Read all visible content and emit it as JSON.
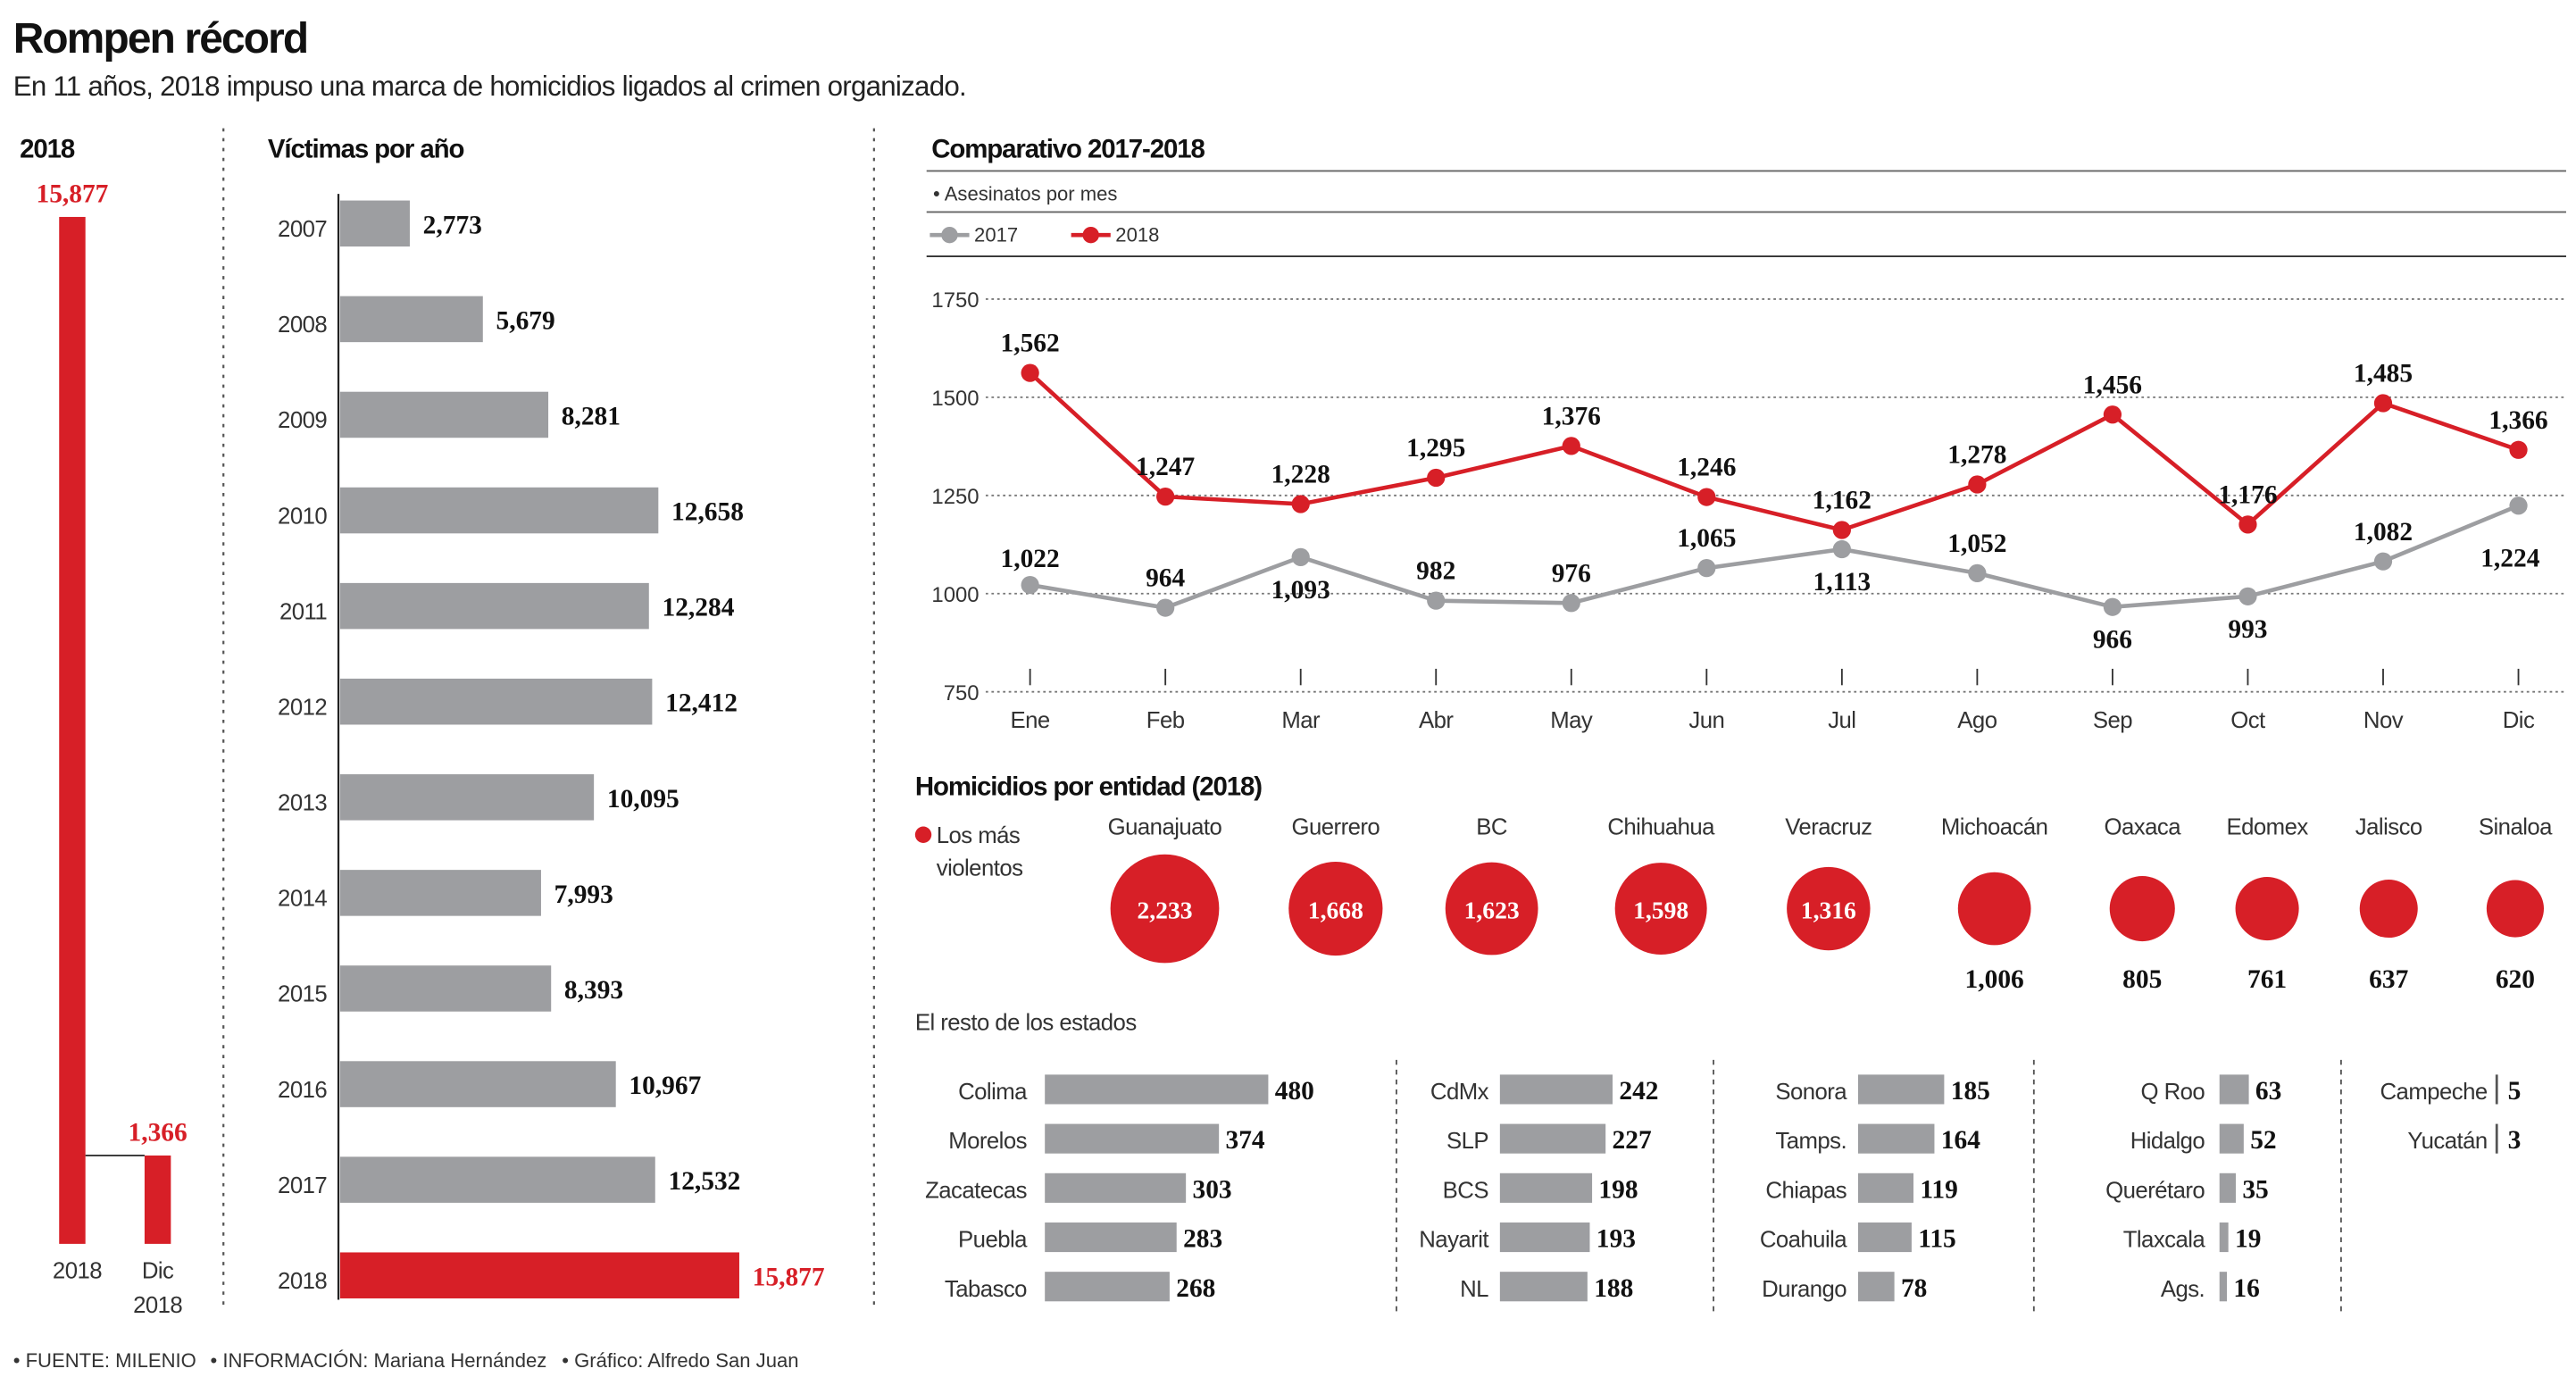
{
  "header": {
    "title": "Rompen récord",
    "subtitle": "En 11 años, 2018 impuso una marca de homicidios ligados al crimen organizado."
  },
  "footer": {
    "source": "• FUENTE: MILENIO",
    "info": "• INFORMACIÓN: Mariana Hernández",
    "graphic": "• Gráfico: Alfredo San Juan"
  },
  "colors": {
    "accent": "#d71f27",
    "gray": "#9d9ea1",
    "text": "#111111"
  },
  "chart_data": [
    {
      "type": "bar",
      "title": "2018",
      "orientation": "vertical",
      "categories": [
        "2018",
        "Dic 2018"
      ],
      "values": [
        15877,
        1366
      ],
      "color": "#d71f27"
    },
    {
      "type": "bar",
      "title": "Víctimas por año",
      "orientation": "horizontal",
      "categories": [
        "2007",
        "2008",
        "2009",
        "2010",
        "2011",
        "2012",
        "2013",
        "2014",
        "2015",
        "2016",
        "2017",
        "2018"
      ],
      "values": [
        2773,
        5679,
        8281,
        12658,
        12284,
        12412,
        10095,
        7993,
        8393,
        10967,
        12532,
        15877
      ],
      "colors": [
        "#9d9ea1",
        "#9d9ea1",
        "#9d9ea1",
        "#9d9ea1",
        "#9d9ea1",
        "#9d9ea1",
        "#9d9ea1",
        "#9d9ea1",
        "#9d9ea1",
        "#9d9ea1",
        "#9d9ea1",
        "#d71f27"
      ]
    },
    {
      "type": "line",
      "title": "Comparativo 2017-2018",
      "subtitle": "• Asesinatos por mes",
      "categories": [
        "Ene",
        "Feb",
        "Mar",
        "Abr",
        "May",
        "Jun",
        "Jul",
        "Ago",
        "Sep",
        "Oct",
        "Nov",
        "Dic"
      ],
      "ylim": [
        750,
        1750
      ],
      "yticks": [
        750,
        1000,
        1250,
        1500,
        1750
      ],
      "grid": true,
      "legend": "top-left",
      "series": [
        {
          "name": "2017",
          "color": "#9d9ea1",
          "values": [
            1022,
            964,
            1093,
            982,
            976,
            1065,
            1113,
            1052,
            966,
            993,
            1082,
            1224
          ]
        },
        {
          "name": "2018",
          "color": "#d71f27",
          "values": [
            1562,
            1247,
            1228,
            1295,
            1376,
            1246,
            1162,
            1278,
            1456,
            1176,
            1485,
            1366
          ]
        }
      ]
    },
    {
      "type": "bubble",
      "title": "Homicidios por entidad (2018)",
      "legend": "Los más violentos",
      "categories": [
        "Guanajuato",
        "Guerrero",
        "BC",
        "Chihuahua",
        "Veracruz",
        "Michoacán",
        "Oaxaca",
        "Edomex",
        "Jalisco",
        "Sinaloa"
      ],
      "values": [
        2233,
        1668,
        1623,
        1598,
        1316,
        1006,
        805,
        761,
        637,
        620
      ],
      "color": "#d71f27"
    },
    {
      "type": "bar",
      "title": "El resto de los estados",
      "orientation": "horizontal",
      "groups": [
        {
          "categories": [
            "Colima",
            "Morelos",
            "Zacatecas",
            "Puebla",
            "Tabasco"
          ],
          "values": [
            480,
            374,
            303,
            283,
            268
          ]
        },
        {
          "categories": [
            "CdMx",
            "SLP",
            "BCS",
            "Nayarit",
            "NL"
          ],
          "values": [
            242,
            227,
            198,
            193,
            188
          ]
        },
        {
          "categories": [
            "Sonora",
            "Tamps.",
            "Chiapas",
            "Coahuila",
            "Durango"
          ],
          "values": [
            185,
            164,
            119,
            115,
            78
          ]
        },
        {
          "categories": [
            "Q Roo",
            "Hidalgo",
            "Querétaro",
            "Tlaxcala",
            "Ags."
          ],
          "values": [
            63,
            52,
            35,
            19,
            16
          ]
        },
        {
          "categories": [
            "Campeche",
            "Yucatán"
          ],
          "values": [
            5,
            3
          ]
        }
      ],
      "color": "#9d9ea1"
    }
  ]
}
